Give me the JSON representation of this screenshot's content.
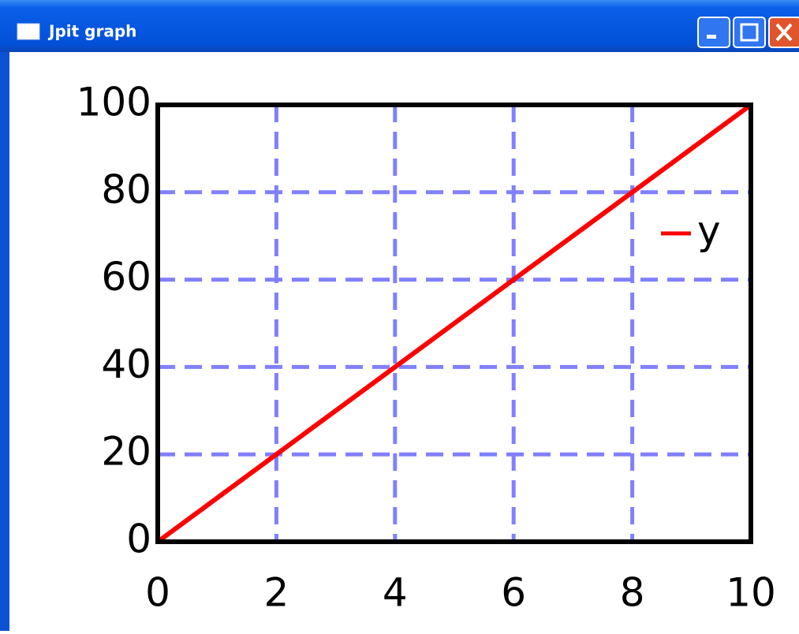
{
  "window": {
    "title": "Jpit graph"
  },
  "chart_data": {
    "type": "line",
    "x": [
      0,
      1,
      2,
      3,
      4,
      5,
      6,
      7,
      8,
      9,
      10
    ],
    "series": [
      {
        "name": "y",
        "color": "#ff0000",
        "values": [
          0,
          10,
          20,
          30,
          40,
          50,
          60,
          70,
          80,
          90,
          100
        ]
      }
    ],
    "xlim": [
      0,
      10
    ],
    "xticks": [
      0,
      2,
      4,
      6,
      8,
      10
    ],
    "ylim": [
      0,
      100
    ],
    "yticks": [
      0,
      20,
      40,
      60,
      80,
      100
    ],
    "grid": true,
    "grid_color": "#8080ff",
    "legend": "upper right"
  }
}
